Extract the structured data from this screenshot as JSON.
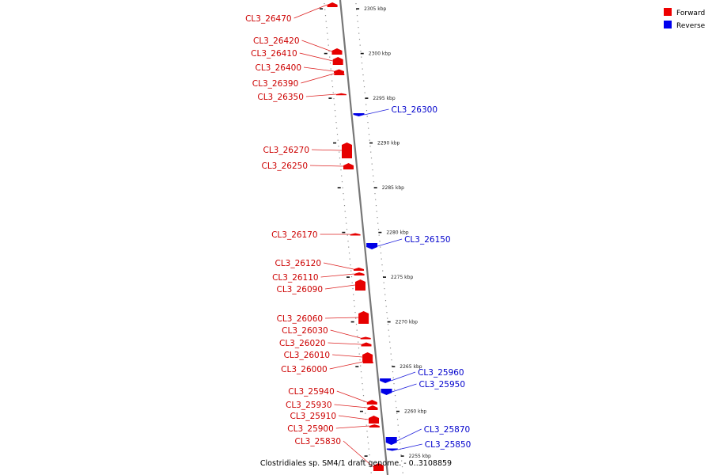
{
  "legend": {
    "forward_label": "Forward",
    "reverse_label": "Reverse",
    "forward_color": "#ee0000",
    "reverse_color": "#0000ee"
  },
  "caption": "Clostridiales sp. SM4/1 draft genome. - 0..3108859",
  "ticks": [
    {
      "kbp": 2305,
      "label": "2305 kbp"
    },
    {
      "kbp": 2300,
      "label": "2300 kbp"
    },
    {
      "kbp": 2295,
      "label": "2295 kbp"
    },
    {
      "kbp": 2290,
      "label": "2290 kbp"
    },
    {
      "kbp": 2285,
      "label": "2285 kbp"
    },
    {
      "kbp": 2280,
      "label": "2280 kbp"
    },
    {
      "kbp": 2275,
      "label": "2275 kbp"
    },
    {
      "kbp": 2270,
      "label": "2270 kbp"
    },
    {
      "kbp": 2265,
      "label": "2265 kbp"
    },
    {
      "kbp": 2260,
      "label": "2260 kbp"
    },
    {
      "kbp": 2255,
      "label": "2255 kbp"
    }
  ],
  "genes": [
    {
      "name": "CL3_26470",
      "strand": "forward"
    },
    {
      "name": "CL3_26420",
      "strand": "forward"
    },
    {
      "name": "CL3_26410",
      "strand": "forward"
    },
    {
      "name": "CL3_26400",
      "strand": "forward"
    },
    {
      "name": "CL3_26390",
      "strand": "forward"
    },
    {
      "name": "CL3_26350",
      "strand": "forward"
    },
    {
      "name": "CL3_26300",
      "strand": "reverse"
    },
    {
      "name": "CL3_26270",
      "strand": "forward"
    },
    {
      "name": "CL3_26250",
      "strand": "forward"
    },
    {
      "name": "CL3_26170",
      "strand": "forward"
    },
    {
      "name": "CL3_26150",
      "strand": "reverse"
    },
    {
      "name": "CL3_26120",
      "strand": "forward"
    },
    {
      "name": "CL3_26110",
      "strand": "forward"
    },
    {
      "name": "CL3_26090",
      "strand": "forward"
    },
    {
      "name": "CL3_26060",
      "strand": "forward"
    },
    {
      "name": "CL3_26030",
      "strand": "forward"
    },
    {
      "name": "CL3_26020",
      "strand": "forward"
    },
    {
      "name": "CL3_26010",
      "strand": "forward"
    },
    {
      "name": "CL3_26000",
      "strand": "forward"
    },
    {
      "name": "CL3_25960",
      "strand": "reverse"
    },
    {
      "name": "CL3_25950",
      "strand": "reverse"
    },
    {
      "name": "CL3_25940",
      "strand": "forward"
    },
    {
      "name": "CL3_25930",
      "strand": "forward"
    },
    {
      "name": "CL3_25910",
      "strand": "forward"
    },
    {
      "name": "CL3_25900",
      "strand": "forward"
    },
    {
      "name": "CL3_25870",
      "strand": "reverse"
    },
    {
      "name": "CL3_25850",
      "strand": "reverse"
    },
    {
      "name": "CL3_25830",
      "strand": "forward"
    }
  ]
}
